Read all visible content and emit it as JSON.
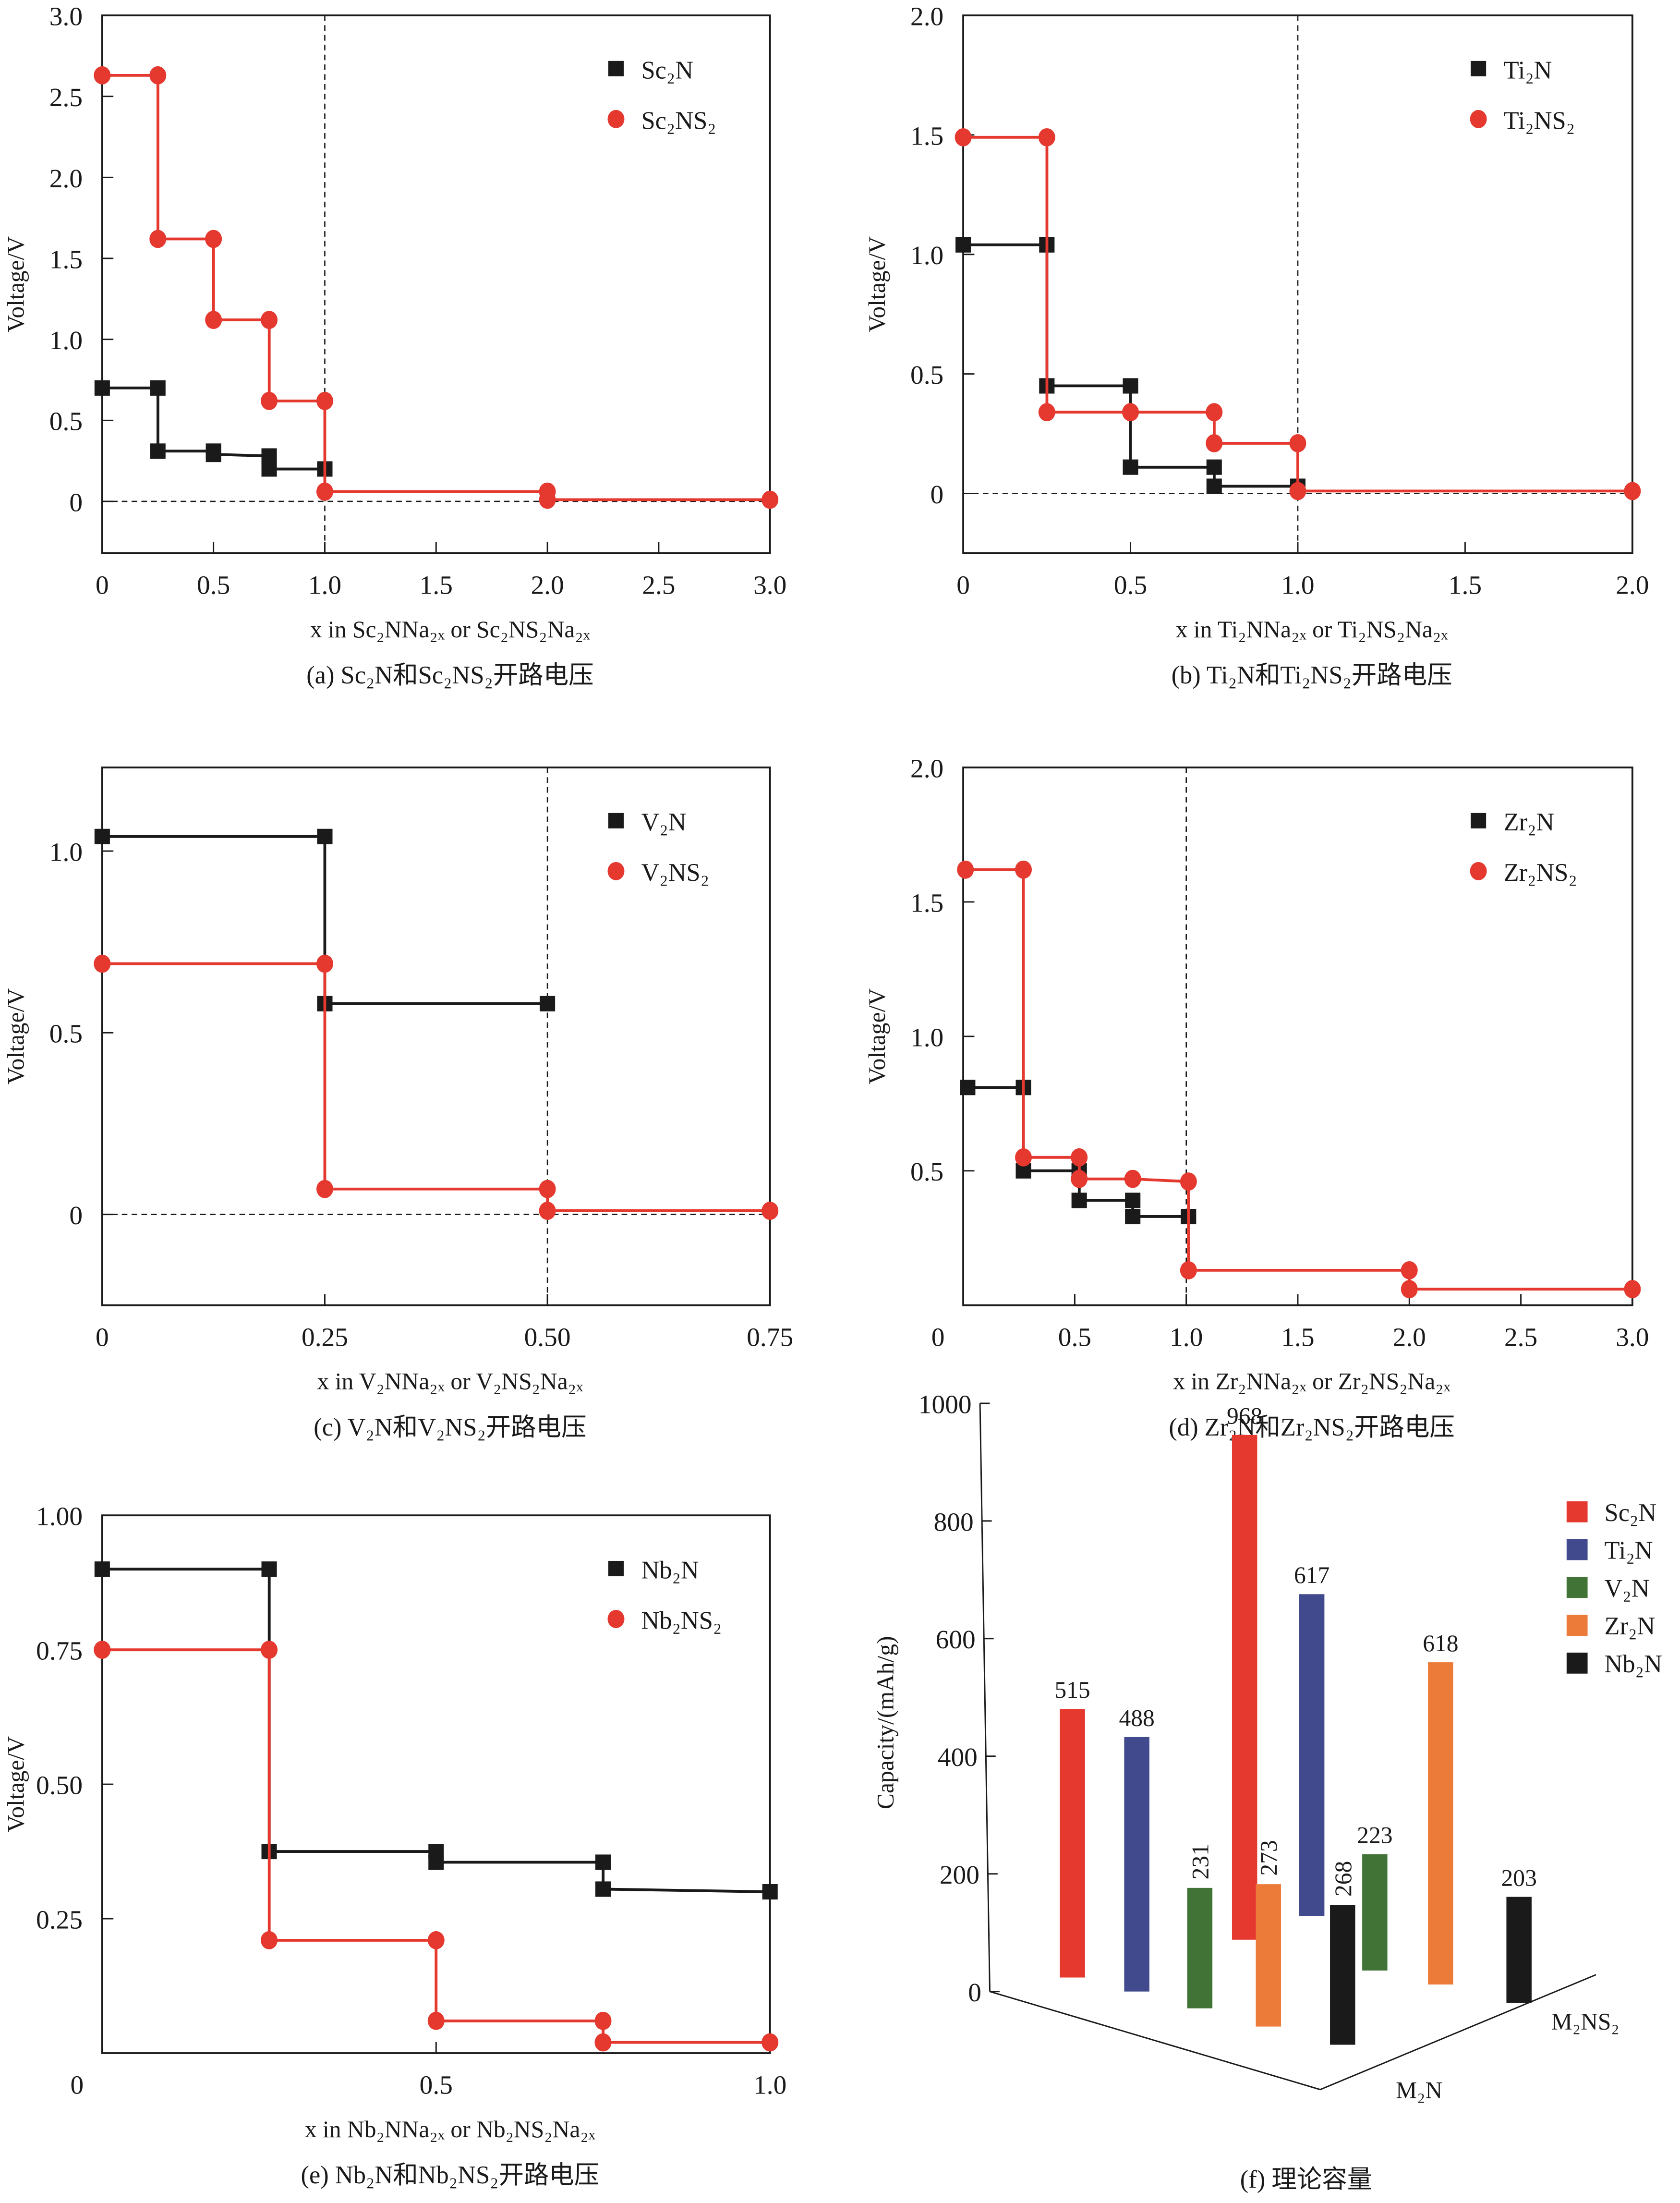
{
  "colors": {
    "red": "#e5382f",
    "black": "#1a1a1a",
    "blue": "#414a8c",
    "green": "#427336",
    "orange": "#ec7a38"
  },
  "chart_data": [
    {
      "id": "a",
      "type": "line",
      "step": true,
      "caption": "(a) Sc₂N和Sc₂NS₂开路电压",
      "xlabel": "x in Sc₂NNa₂ₓ or Sc₂NS₂Na₂ₓ",
      "ylabel": "Voltage/V",
      "xlim": [
        0,
        3.0
      ],
      "ylim": [
        -0.32,
        3.0
      ],
      "xticks": [
        0,
        0.5,
        1.0,
        1.5,
        2.0,
        2.5,
        3.0
      ],
      "xtick_labels": [
        "0",
        "0.5",
        "1.0",
        "1.5",
        "2.0",
        "2.5",
        "3.0"
      ],
      "yticks": [
        0,
        0.5,
        1.0,
        1.5,
        2.0,
        2.5,
        3.0
      ],
      "ytick_labels": [
        "0",
        "0.5",
        "1.0",
        "1.5",
        "2.0",
        "2.5",
        "3.0"
      ],
      "ref_x": 1.0,
      "ref_y": 0,
      "legend": "top-right",
      "series": [
        {
          "name": "Sc₂N",
          "marker": "square",
          "color": "black",
          "x": [
            0,
            0.25,
            0.25,
            0.5,
            0.5,
            0.75,
            0.75,
            1.0
          ],
          "y": [
            0.7,
            0.7,
            0.31,
            0.31,
            0.29,
            0.28,
            0.2,
            0.2
          ]
        },
        {
          "name": "Sc₂NS₂",
          "marker": "circle",
          "color": "red",
          "x": [
            0,
            0.25,
            0.25,
            0.5,
            0.5,
            0.75,
            0.75,
            1.0,
            1.0,
            2.0,
            2.0,
            3.0
          ],
          "y": [
            2.63,
            2.63,
            1.62,
            1.62,
            1.12,
            1.12,
            0.62,
            0.62,
            0.06,
            0.06,
            0.01,
            0.01
          ]
        }
      ]
    },
    {
      "id": "b",
      "type": "line",
      "step": true,
      "caption": "(b) Ti₂N和Ti₂NS₂开路电压",
      "xlabel": "x in Ti₂NNa₂ₓ or Ti₂NS₂Na₂ₓ",
      "ylabel": "Voltage/V",
      "xlim": [
        0,
        2.0
      ],
      "ylim": [
        -0.25,
        2.0
      ],
      "xticks": [
        0,
        0.5,
        1.0,
        1.5,
        2.0
      ],
      "xtick_labels": [
        "0",
        "0.5",
        "1.0",
        "1.5",
        "2.0"
      ],
      "yticks": [
        0,
        0.5,
        1.0,
        1.5,
        2.0
      ],
      "ytick_labels": [
        "0",
        "0.5",
        "1.0",
        "1.5",
        "2.0"
      ],
      "ref_x": 1.0,
      "ref_y": 0,
      "legend": "top-right",
      "series": [
        {
          "name": "Ti₂N",
          "marker": "square",
          "color": "black",
          "x": [
            0,
            0.25,
            0.25,
            0.5,
            0.5,
            0.75,
            0.75,
            1.0
          ],
          "y": [
            1.04,
            1.04,
            0.45,
            0.45,
            0.11,
            0.11,
            0.03,
            0.03
          ]
        },
        {
          "name": "Ti₂NS₂",
          "marker": "circle",
          "color": "red",
          "x": [
            0,
            0.25,
            0.25,
            0.5,
            0.75,
            0.75,
            1.0,
            1.0,
            2.0
          ],
          "y": [
            1.49,
            1.49,
            0.34,
            0.34,
            0.34,
            0.21,
            0.21,
            0.01,
            0.01
          ]
        }
      ]
    },
    {
      "id": "c",
      "type": "line",
      "step": true,
      "caption": "(c) V₂N和V₂NS₂开路电压",
      "xlabel": "x in V₂NNa₂ₓ or V₂NS₂Na₂ₓ",
      "ylabel": "Voltage/V",
      "xlim": [
        0,
        0.75
      ],
      "ylim": [
        -0.25,
        1.23
      ],
      "xticks": [
        0,
        0.25,
        0.5,
        0.75
      ],
      "xtick_labels": [
        "0",
        "0.25",
        "0.50",
        "0.75"
      ],
      "yticks": [
        0,
        0.5,
        1.0
      ],
      "ytick_labels": [
        "0",
        "0.5",
        "1.0"
      ],
      "ref_x": 0.5,
      "ref_y": 0,
      "legend": "top-right",
      "series": [
        {
          "name": "V₂N",
          "marker": "square",
          "color": "black",
          "x": [
            0,
            0.25,
            0.25,
            0.5
          ],
          "y": [
            1.04,
            1.04,
            0.58,
            0.58
          ]
        },
        {
          "name": "V₂NS₂",
          "marker": "circle",
          "color": "red",
          "x": [
            0,
            0.25,
            0.25,
            0.5,
            0.5,
            0.75
          ],
          "y": [
            0.69,
            0.69,
            0.07,
            0.07,
            0.01,
            0.01
          ]
        }
      ]
    },
    {
      "id": "d",
      "type": "line",
      "step": true,
      "caption": "(d) Zr₂N和Zr₂NS₂开路电压",
      "xlabel": "x in Zr₂NNa₂ₓ or Zr₂NS₂Na₂ₓ",
      "ylabel": "Voltage/V",
      "xlim": [
        0,
        3.0
      ],
      "ylim": [
        0,
        2.0
      ],
      "xticks": [
        0,
        0.5,
        1.0,
        1.5,
        2.0,
        2.5,
        3.0
      ],
      "xtick_labels": [
        "0",
        "0.5",
        "1.0",
        "1.5",
        "2.0",
        "2.5",
        "3.0"
      ],
      "yticks": [
        0.5,
        1.0,
        1.5,
        2.0
      ],
      "ytick_labels": [
        "0.5",
        "1.0",
        "1.5",
        "2.0"
      ],
      "ref_x": 1.0,
      "ref_y": null,
      "legend": "top-right",
      "series": [
        {
          "name": "Zr₂N",
          "marker": "square",
          "color": "black",
          "x": [
            0.02,
            0.27,
            0.27,
            0.52,
            0.52,
            0.76,
            0.76,
            1.01
          ],
          "y": [
            0.81,
            0.81,
            0.5,
            0.5,
            0.39,
            0.39,
            0.33,
            0.33
          ]
        },
        {
          "name": "Zr₂NS₂",
          "marker": "circle",
          "color": "red",
          "x": [
            0.01,
            0.27,
            0.27,
            0.52,
            0.52,
            0.76,
            1.01,
            1.01,
            2.0,
            2.0,
            3.0
          ],
          "y": [
            1.62,
            1.62,
            0.55,
            0.55,
            0.47,
            0.47,
            0.46,
            0.13,
            0.13,
            0.06,
            0.06
          ]
        }
      ]
    },
    {
      "id": "e",
      "type": "line",
      "step": true,
      "caption": "(e) Nb₂N和Nb₂NS₂开路电压",
      "xlabel": "x in Nb₂NNa₂ₓ or Nb₂NS₂Na₂ₓ",
      "ylabel": "Voltage/V",
      "xlim": [
        0,
        1.0
      ],
      "ylim": [
        0,
        1.0
      ],
      "xticks": [
        0,
        0.5,
        1.0
      ],
      "xtick_labels": [
        "0",
        "0.5",
        "1.0"
      ],
      "yticks": [
        0.25,
        0.5,
        0.75,
        1.0
      ],
      "ytick_labels": [
        "0.25",
        "0.50",
        "0.75",
        "1.00"
      ],
      "ref_x": null,
      "ref_y": null,
      "legend": "top-right",
      "series": [
        {
          "name": "Nb₂N",
          "marker": "square",
          "color": "black",
          "x": [
            0,
            0.25,
            0.25,
            0.5,
            0.5,
            0.75,
            0.75,
            1.0
          ],
          "y": [
            0.9,
            0.9,
            0.375,
            0.375,
            0.355,
            0.355,
            0.305,
            0.3
          ]
        },
        {
          "name": "Nb₂NS₂",
          "marker": "circle",
          "color": "red",
          "x": [
            0,
            0.25,
            0.25,
            0.5,
            0.5,
            0.75,
            0.75,
            1.0
          ],
          "y": [
            0.75,
            0.75,
            0.21,
            0.21,
            0.06,
            0.06,
            0.02,
            0.02
          ]
        }
      ]
    },
    {
      "id": "f",
      "type": "bar",
      "caption": "(f) 理论容量",
      "ylabel": "Capacity/(mAh/g)",
      "ylim": [
        0,
        1000
      ],
      "yticks": [
        0,
        200,
        400,
        600,
        800,
        1000
      ],
      "ytick_labels": [
        "0",
        "200",
        "400",
        "600",
        "800",
        "1000"
      ],
      "axis_labels": [
        "M₂N",
        "M₂NS₂"
      ],
      "legend": "top-right",
      "legend_entries": [
        {
          "name": "Sc₂N",
          "color": "red"
        },
        {
          "name": "Ti₂N",
          "color": "blue"
        },
        {
          "name": "V₂N",
          "color": "green"
        },
        {
          "name": "Zr₂N",
          "color": "orange"
        },
        {
          "name": "Nb₂N",
          "color": "black"
        }
      ],
      "categories": [
        "Sc₂N",
        "Ti₂N",
        "V₂N",
        "Zr₂N",
        "Nb₂N"
      ],
      "series": [
        {
          "name": "M₂N",
          "values": [
            515,
            488,
            231,
            273,
            268
          ]
        },
        {
          "name": "M₂NS₂",
          "values": [
            968,
            617,
            223,
            618,
            203
          ]
        }
      ],
      "bars": [
        {
          "label": "515",
          "value": 515,
          "material": "Sc₂N",
          "group": "M₂N",
          "color": "red",
          "rotated": false
        },
        {
          "label": "488",
          "value": 488,
          "material": "Ti₂N",
          "group": "M₂N",
          "color": "blue",
          "rotated": false
        },
        {
          "label": "231",
          "value": 231,
          "material": "V₂N",
          "group": "M₂N",
          "color": "green",
          "rotated": true
        },
        {
          "label": "968",
          "value": 968,
          "material": "Sc₂N",
          "group": "M₂NS₂",
          "color": "red",
          "rotated": false
        },
        {
          "label": "273",
          "value": 273,
          "material": "Zr₂N",
          "group": "M₂N",
          "color": "orange",
          "rotated": true
        },
        {
          "label": "617",
          "value": 617,
          "material": "Ti₂N",
          "group": "M₂NS₂",
          "color": "blue",
          "rotated": false
        },
        {
          "label": "268",
          "value": 268,
          "material": "Nb₂N",
          "group": "M₂N",
          "color": "black",
          "rotated": true
        },
        {
          "label": "223",
          "value": 223,
          "material": "V₂N",
          "group": "M₂NS₂",
          "color": "green",
          "rotated": false
        },
        {
          "label": "618",
          "value": 618,
          "material": "Zr₂N",
          "group": "M₂NS₂",
          "color": "orange",
          "rotated": false
        },
        {
          "label": "203",
          "value": 203,
          "material": "Nb₂N",
          "group": "M₂NS₂",
          "color": "black",
          "rotated": false
        }
      ]
    }
  ]
}
